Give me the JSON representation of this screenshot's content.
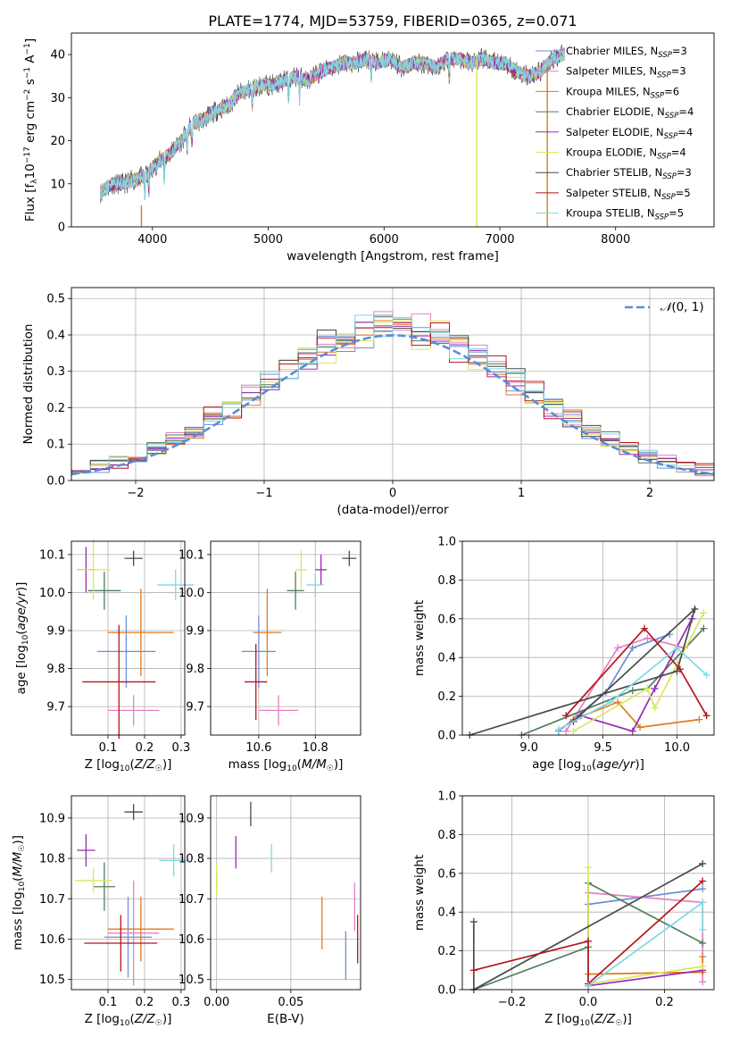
{
  "colors": {
    "Chabrier MILES": "#6b8fd6",
    "Salpeter MILES": "#e87fc0",
    "Kroupa MILES": "#e27a1e",
    "Chabrier ELODIE": "#4e7d5c",
    "Salpeter ELODIE": "#9a2ab0",
    "Kroupa ELODIE": "#d8e85a",
    "Chabrier STELIB": "#4a4a4a",
    "Salpeter STELIB": "#b3161c",
    "Kroupa STELIB": "#7fd8e0"
  },
  "chart_data": [
    {
      "id": "spectrum",
      "type": "line",
      "title": "PLATE=1774, MJD=53759, FIBERID=0365, z=0.071",
      "xlabel": "wavelength [Angstrom, rest frame]",
      "ylabel": "Flux [f_λ10^-17 erg cm^-2 s^-1 A^-1]",
      "xlim": [
        3300,
        8850
      ],
      "ylim": [
        0,
        45
      ],
      "xticks": [
        4000,
        5000,
        6000,
        7000,
        8000
      ],
      "yticks": [
        0,
        10,
        20,
        30,
        40
      ],
      "grid": false,
      "legend_position": "right",
      "legend": [
        {
          "name": "Chabrier MILES",
          "nssp": "3"
        },
        {
          "name": "Salpeter MILES",
          "nssp": "3"
        },
        {
          "name": "Kroupa MILES",
          "nssp": "6"
        },
        {
          "name": "Chabrier ELODIE",
          "nssp": "4"
        },
        {
          "name": "Salpeter ELODIE",
          "nssp": "4"
        },
        {
          "name": "Kroupa ELODIE",
          "nssp": "4"
        },
        {
          "name": "Chabrier STELIB",
          "nssp": "3"
        },
        {
          "name": "Salpeter STELIB",
          "nssp": "5"
        },
        {
          "name": "Kroupa STELIB",
          "nssp": "5"
        }
      ],
      "envelope": {
        "x": [
          3550,
          3650,
          3750,
          3850,
          3950,
          4050,
          4150,
          4250,
          4350,
          4450,
          4550,
          4650,
          4750,
          4850,
          4950,
          5050,
          5150,
          5250,
          5350,
          5450,
          5550,
          5650,
          5750,
          5850,
          5950,
          6050,
          6150,
          6250,
          6350,
          6450,
          6550,
          6650,
          6750,
          6850,
          6950,
          7050,
          7150,
          7250,
          7350,
          7450,
          7550
        ],
        "y": [
          8,
          10,
          10,
          11,
          12,
          15,
          17,
          20,
          24,
          25,
          27,
          28,
          31,
          32,
          33,
          33,
          34,
          35,
          34,
          36,
          37,
          38,
          38,
          39,
          38,
          39,
          37,
          38,
          38,
          37,
          39,
          39,
          38,
          39,
          38,
          38,
          36,
          35,
          36,
          39,
          40
        ]
      },
      "spikes": [
        {
          "x": 3905,
          "color": "Kroupa MILES",
          "y": [
            0,
            5
          ]
        },
        {
          "x": 6800,
          "color": "Kroupa ELODIE",
          "y": [
            0,
            40
          ]
        },
        {
          "x": 7410,
          "color": "Kroupa MILES",
          "y": [
            0,
            37
          ]
        }
      ]
    },
    {
      "id": "residuals",
      "type": "histogram",
      "xlabel": "(data-model)/error",
      "ylabel": "Normed distribution",
      "xlim": [
        -2.5,
        2.5
      ],
      "ylim": [
        0,
        0.53
      ],
      "xticks": [
        -2,
        -1,
        0,
        1,
        2
      ],
      "yticks": [
        0.0,
        0.1,
        0.2,
        0.3,
        0.4,
        0.5
      ],
      "grid": true,
      "legend_position": "top-right",
      "reference_label": "N(0,1)",
      "bins": 34
    },
    {
      "id": "age_vs_Z",
      "type": "scatter",
      "xlabel": "Z [log10(Z/Z☉)]",
      "ylabel": "age  [log10(age/yr)]",
      "xlim": [
        0.0,
        0.31
      ],
      "ylim": [
        9.625,
        10.135
      ],
      "xticks": [
        0.1,
        0.2,
        0.3
      ],
      "yticks": [
        9.7,
        9.8,
        9.9,
        10.0,
        10.1
      ],
      "grid": true,
      "points": [
        {
          "s": "Chabrier MILES",
          "x": 0.15,
          "y": 9.845,
          "xerr": 0.08,
          "yerr": 0.095
        },
        {
          "s": "Salpeter MILES",
          "x": 0.17,
          "y": 9.69,
          "xerr": 0.07,
          "yerr": 0.04
        },
        {
          "s": "Kroupa MILES",
          "x": 0.19,
          "y": 9.895,
          "xerr": 0.09,
          "yerr": 0.115
        },
        {
          "s": "Chabrier ELODIE",
          "x": 0.09,
          "y": 10.005,
          "xerr": 0.045,
          "yerr": 0.05
        },
        {
          "s": "Salpeter ELODIE",
          "x": 0.04,
          "y": 10.06,
          "xerr": 0.025,
          "yerr": 0.06
        },
        {
          "s": "Kroupa ELODIE",
          "x": 0.06,
          "y": 10.06,
          "xerr": 0.045,
          "yerr": 0.08
        },
        {
          "s": "Chabrier STELIB",
          "x": 0.17,
          "y": 10.09,
          "xerr": 0.025,
          "yerr": 0.02
        },
        {
          "s": "Salpeter STELIB",
          "x": 0.13,
          "y": 9.765,
          "xerr": 0.1,
          "yerr": 0.15
        },
        {
          "s": "Kroupa STELIB",
          "x": 0.285,
          "y": 10.02,
          "xerr": 0.05,
          "yerr": 0.04
        }
      ]
    },
    {
      "id": "age_vs_mass",
      "type": "scatter",
      "xlabel": "mass [log10(M/M☉)]",
      "ylabel": "",
      "xlim": [
        10.43,
        10.96
      ],
      "ylim": [
        9.625,
        10.135
      ],
      "xticks": [
        10.6,
        10.8
      ],
      "yticks": [
        9.7,
        9.8,
        9.9,
        10.0,
        10.1
      ],
      "grid": true,
      "points": [
        {
          "s": "Chabrier MILES",
          "x": 10.6,
          "y": 9.845,
          "xerr": 0.06,
          "yerr": 0.095
        },
        {
          "s": "Salpeter MILES",
          "x": 10.67,
          "y": 9.69,
          "xerr": 0.07,
          "yerr": 0.04
        },
        {
          "s": "Kroupa MILES",
          "x": 10.63,
          "y": 9.895,
          "xerr": 0.05,
          "yerr": 0.115
        },
        {
          "s": "Chabrier ELODIE",
          "x": 10.73,
          "y": 10.005,
          "xerr": 0.03,
          "yerr": 0.05
        },
        {
          "s": "Salpeter ELODIE",
          "x": 10.82,
          "y": 10.06,
          "xerr": 0.02,
          "yerr": 0.04
        },
        {
          "s": "Kroupa ELODIE",
          "x": 10.75,
          "y": 10.06,
          "xerr": 0.02,
          "yerr": 0.05
        },
        {
          "s": "Chabrier STELIB",
          "x": 10.92,
          "y": 10.09,
          "xerr": 0.025,
          "yerr": 0.02
        },
        {
          "s": "Salpeter STELIB",
          "x": 10.59,
          "y": 9.765,
          "xerr": 0.04,
          "yerr": 0.1
        },
        {
          "s": "Kroupa STELIB",
          "x": 10.8,
          "y": 10.02,
          "xerr": 0.03,
          "yerr": 0.03
        }
      ]
    },
    {
      "id": "massweight_vs_age",
      "type": "line",
      "xlabel": "age  [log10(age/yr)]",
      "ylabel": "mass weight",
      "xlim": [
        8.55,
        10.25
      ],
      "ylim": [
        0,
        1
      ],
      "xticks": [
        9.0,
        9.5,
        10.0
      ],
      "yticks": [
        0.0,
        0.2,
        0.4,
        0.6,
        0.8,
        1.0
      ],
      "grid": true,
      "series": [
        {
          "s": "Chabrier MILES",
          "x": [
            9.2,
            9.52,
            9.7,
            9.95
          ],
          "y": [
            0.02,
            0.22,
            0.45,
            0.52
          ]
        },
        {
          "s": "Salpeter MILES",
          "x": [
            9.25,
            9.6,
            9.8,
            10.05
          ],
          "y": [
            0.02,
            0.45,
            0.5,
            0.45
          ]
        },
        {
          "s": "Kroupa MILES",
          "x": [
            9.3,
            9.6,
            9.75,
            10.15
          ],
          "y": [
            0.08,
            0.17,
            0.04,
            0.08
          ]
        },
        {
          "s": "Chabrier ELODIE",
          "x": [
            8.95,
            9.7,
            9.8,
            10.18
          ],
          "y": [
            0.0,
            0.23,
            0.24,
            0.55
          ]
        },
        {
          "s": "Salpeter ELODIE",
          "x": [
            9.35,
            9.7,
            9.85,
            10.1
          ],
          "y": [
            0.1,
            0.02,
            0.24,
            0.6
          ]
        },
        {
          "s": "Kroupa ELODIE",
          "x": [
            9.3,
            9.8,
            9.85,
            10.18
          ],
          "y": [
            0.02,
            0.24,
            0.14,
            0.63
          ]
        },
        {
          "s": "Chabrier STELIB",
          "x": [
            8.6,
            10.0,
            10.12,
            9.3
          ],
          "y": [
            0.0,
            0.33,
            0.65,
            0.07
          ]
        },
        {
          "s": "Salpeter STELIB",
          "x": [
            9.25,
            9.78,
            10.02,
            10.2
          ],
          "y": [
            0.1,
            0.55,
            0.34,
            0.1
          ]
        },
        {
          "s": "Kroupa STELIB",
          "x": [
            9.2,
            9.55,
            10.0,
            10.2
          ],
          "y": [
            0.03,
            0.17,
            0.45,
            0.31
          ]
        }
      ]
    },
    {
      "id": "mass_vs_Z",
      "type": "scatter",
      "xlabel": "Z [log10(Z/Z☉)]",
      "ylabel": "mass [log10(M/M☉)]",
      "xlim": [
        0.0,
        0.31
      ],
      "ylim": [
        10.475,
        10.955
      ],
      "xticks": [
        0.1,
        0.2,
        0.3
      ],
      "yticks": [
        10.5,
        10.6,
        10.7,
        10.8,
        10.9
      ],
      "grid": true,
      "points": [
        {
          "s": "Chabrier MILES",
          "x": 0.155,
          "y": 10.605,
          "xerr": 0.065,
          "yerr": 0.1
        },
        {
          "s": "Salpeter MILES",
          "x": 0.17,
          "y": 10.615,
          "xerr": 0.07,
          "yerr": 0.13
        },
        {
          "s": "Kroupa MILES",
          "x": 0.19,
          "y": 10.625,
          "xerr": 0.09,
          "yerr": 0.08
        },
        {
          "s": "Chabrier ELODIE",
          "x": 0.09,
          "y": 10.73,
          "xerr": 0.03,
          "yerr": 0.06
        },
        {
          "s": "Salpeter ELODIE",
          "x": 0.04,
          "y": 10.82,
          "xerr": 0.025,
          "yerr": 0.04
        },
        {
          "s": "Kroupa ELODIE",
          "x": 0.06,
          "y": 10.745,
          "xerr": 0.05,
          "yerr": 0.03
        },
        {
          "s": "Chabrier STELIB",
          "x": 0.17,
          "y": 10.915,
          "xerr": 0.025,
          "yerr": 0.02
        },
        {
          "s": "Salpeter STELIB",
          "x": 0.135,
          "y": 10.59,
          "xerr": 0.1,
          "yerr": 0.07
        },
        {
          "s": "Kroupa STELIB",
          "x": 0.28,
          "y": 10.795,
          "xerr": 0.04,
          "yerr": 0.04
        }
      ]
    },
    {
      "id": "mass_vs_ebv",
      "type": "scatter",
      "xlabel": "E(B-V)",
      "ylabel": "",
      "xlim": [
        -0.004,
        0.097
      ],
      "ylim": [
        10.475,
        10.955
      ],
      "xticks": [
        0.0,
        0.05
      ],
      "yticks": [
        10.5,
        10.6,
        10.7,
        10.8,
        10.9
      ],
      "grid": true,
      "points": [
        {
          "s": "Chabrier MILES",
          "x": 0.087,
          "y": 10.56,
          "xerr": 0,
          "yerr": 0.06
        },
        {
          "s": "Salpeter MILES",
          "x": 0.093,
          "y": 10.68,
          "xerr": 0,
          "yerr": 0.06
        },
        {
          "s": "Kroupa MILES",
          "x": 0.071,
          "y": 10.64,
          "xerr": 0,
          "yerr": 0.065
        },
        {
          "s": "Chabrier ELODIE",
          "x": 0.0,
          "y": 10.745,
          "xerr": 0,
          "yerr": 0.02
        },
        {
          "s": "Salpeter ELODIE",
          "x": 0.013,
          "y": 10.815,
          "xerr": 0,
          "yerr": 0.04
        },
        {
          "s": "Kroupa ELODIE",
          "x": 0.0,
          "y": 10.745,
          "xerr": 0,
          "yerr": 0.04
        },
        {
          "s": "Chabrier STELIB",
          "x": 0.023,
          "y": 10.91,
          "xerr": 0,
          "yerr": 0.03
        },
        {
          "s": "Salpeter STELIB",
          "x": 0.095,
          "y": 10.6,
          "xerr": 0,
          "yerr": 0.06
        },
        {
          "s": "Kroupa STELIB",
          "x": 0.037,
          "y": 10.8,
          "xerr": 0,
          "yerr": 0.035
        }
      ]
    },
    {
      "id": "massweight_vs_Z",
      "type": "line",
      "xlabel": "Z [log10(Z/Z☉)]",
      "ylabel": "mass weight",
      "xlim": [
        -0.33,
        0.33
      ],
      "ylim": [
        0,
        1
      ],
      "xticks": [
        -0.2,
        0.0,
        0.2
      ],
      "yticks": [
        0.0,
        0.2,
        0.4,
        0.6,
        0.8,
        1.0
      ],
      "grid": true,
      "series": [
        {
          "s": "Chabrier MILES",
          "x": [
            0.0,
            0.0,
            0.3
          ],
          "y": [
            0.02,
            0.44,
            0.52
          ]
        },
        {
          "s": "Salpeter MILES",
          "x": [
            0.0,
            0.3,
            0.3
          ],
          "y": [
            0.5,
            0.45,
            0.04
          ]
        },
        {
          "s": "Kroupa MILES",
          "x": [
            0.0,
            0.3,
            0.3
          ],
          "y": [
            0.08,
            0.09,
            0.17
          ]
        },
        {
          "s": "Chabrier ELODIE",
          "x": [
            -0.3,
            0.0,
            0.0,
            0.3
          ],
          "y": [
            0.0,
            0.22,
            0.55,
            0.24
          ]
        },
        {
          "s": "Salpeter ELODIE",
          "x": [
            0.0,
            0.3
          ],
          "y": [
            0.02,
            0.1
          ]
        },
        {
          "s": "Kroupa ELODIE",
          "x": [
            0.0,
            0.0,
            0.3
          ],
          "y": [
            0.63,
            0.03,
            0.12
          ]
        },
        {
          "s": "Chabrier STELIB",
          "x": [
            -0.3,
            -0.3,
            0.3
          ],
          "y": [
            0.35,
            0.0,
            0.65
          ]
        },
        {
          "s": "Salpeter STELIB",
          "x": [
            -0.3,
            0.0,
            0.0,
            0.3
          ],
          "y": [
            0.1,
            0.25,
            0.03,
            0.56
          ]
        },
        {
          "s": "Kroupa STELIB",
          "x": [
            0.0,
            0.3,
            0.3
          ],
          "y": [
            0.02,
            0.45,
            0.31
          ]
        }
      ]
    }
  ]
}
